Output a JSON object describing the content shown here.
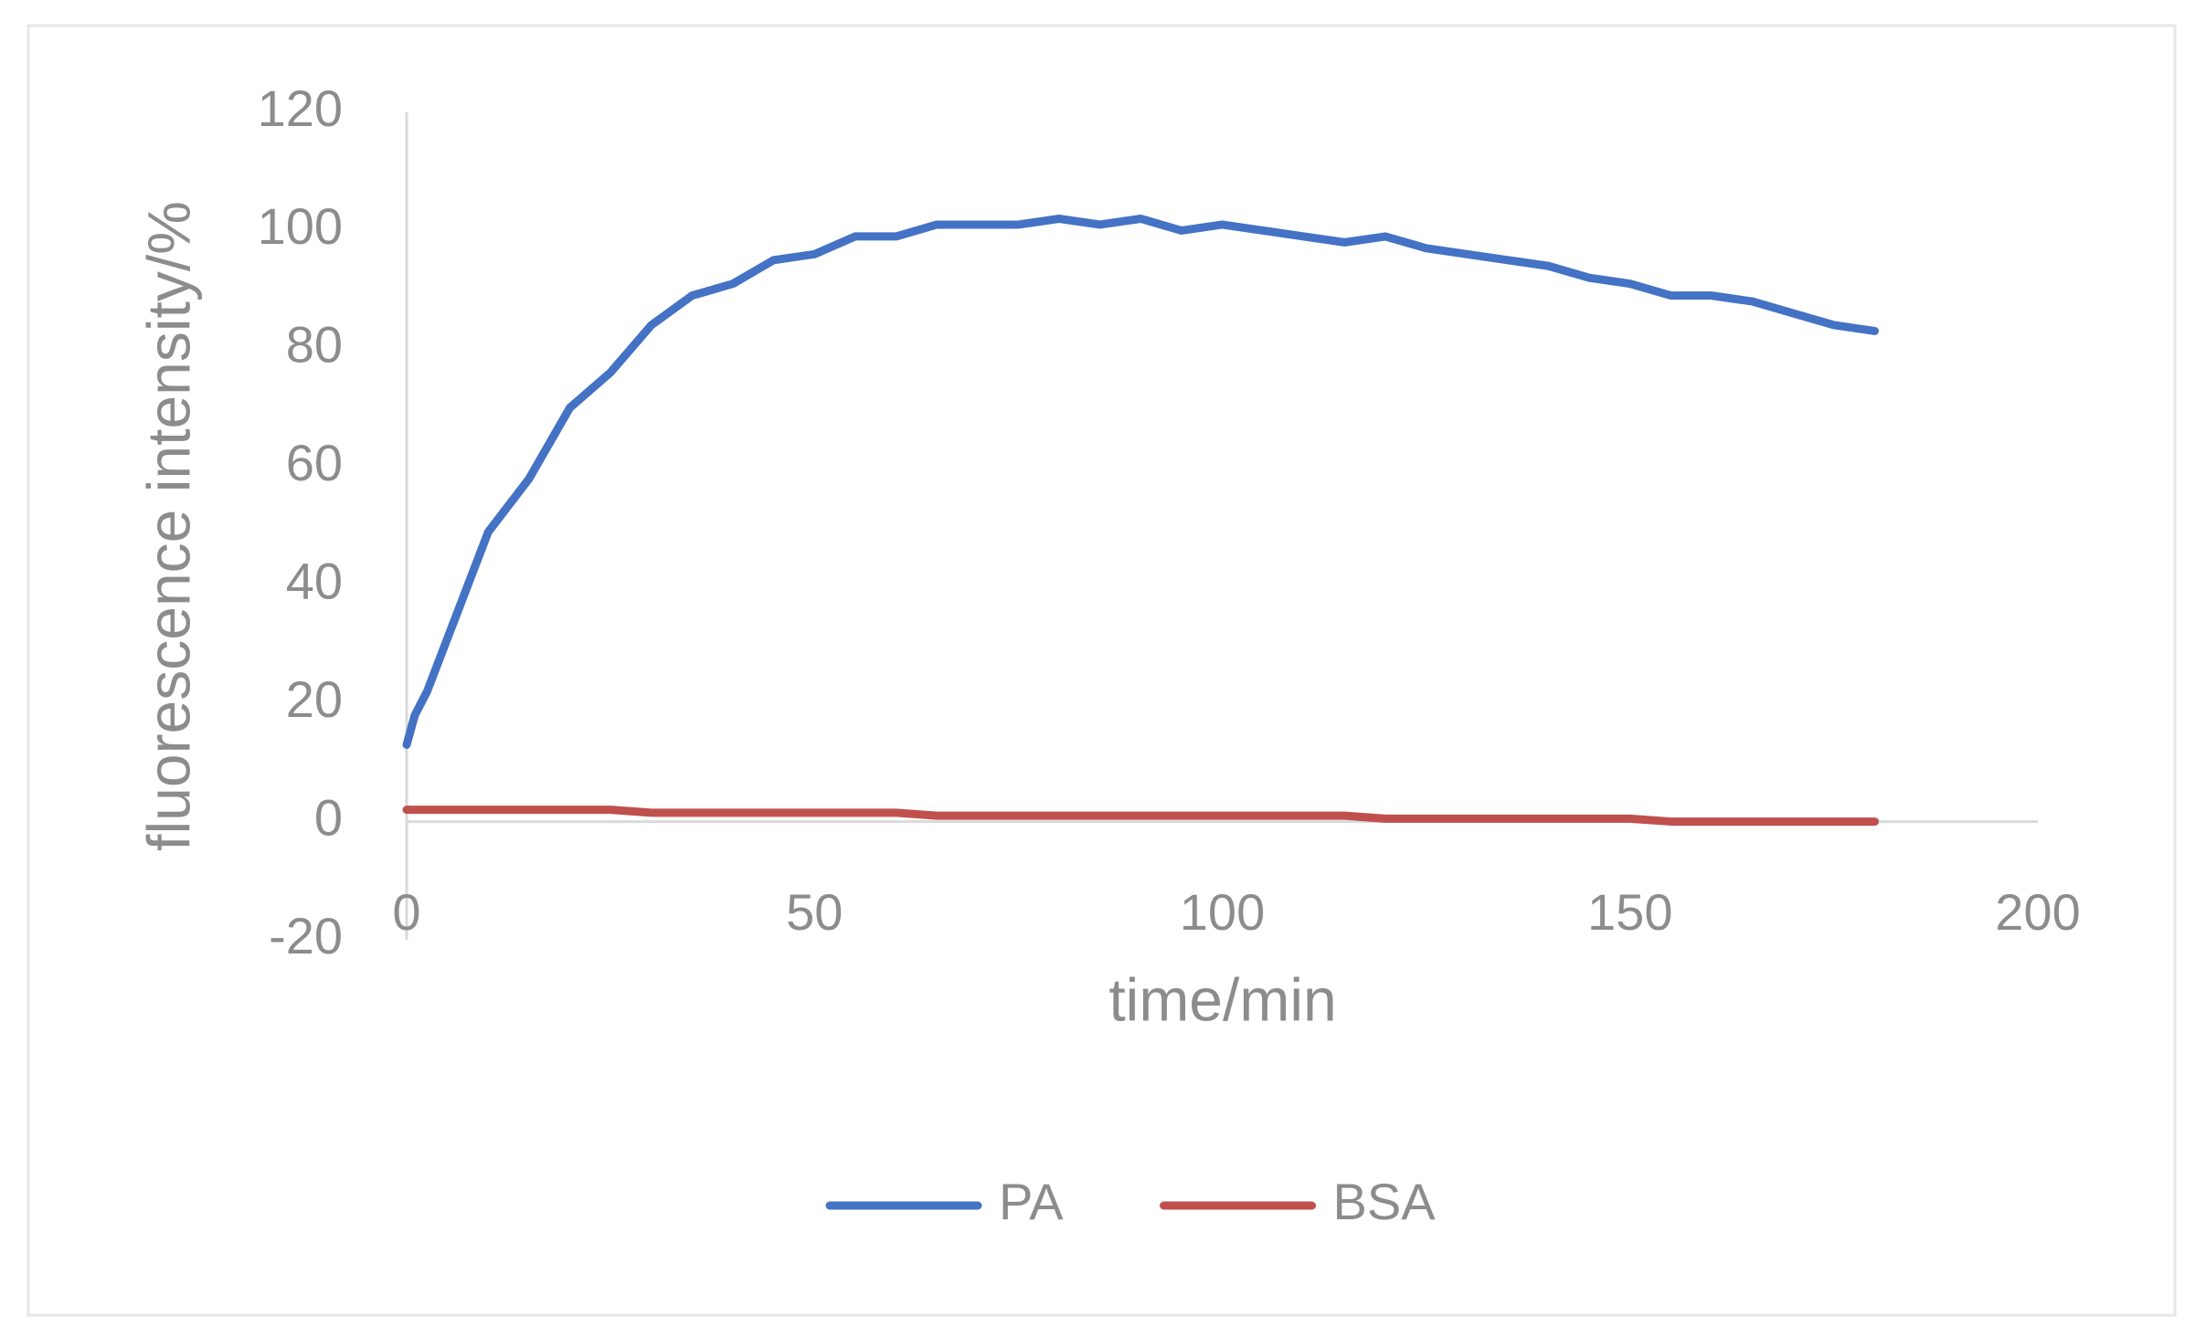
{
  "chart_data": {
    "type": "line",
    "xlabel": "time/min",
    "ylabel": "fluorescence intensity/%",
    "x": [
      0,
      1,
      2.5,
      5,
      10,
      15,
      20,
      25,
      30,
      35,
      40,
      45,
      50,
      55,
      60,
      65,
      70,
      75,
      80,
      85,
      90,
      95,
      100,
      105,
      110,
      115,
      120,
      125,
      130,
      135,
      140,
      145,
      150,
      155,
      160,
      165,
      170,
      175,
      180
    ],
    "series": [
      {
        "name": "PA",
        "color": "#4472c4",
        "values": [
          13,
          18,
          22,
          31,
          49,
          58,
          70,
          76,
          84,
          89,
          91,
          95,
          96,
          99,
          99,
          101,
          101,
          101,
          102,
          101,
          102,
          100,
          101,
          100,
          99,
          98,
          99,
          97,
          96,
          95,
          94,
          92,
          91,
          89,
          89,
          88,
          86,
          84,
          83
        ]
      },
      {
        "name": "BSA",
        "color": "#c0504d",
        "values": [
          2,
          2,
          2,
          2,
          2,
          2,
          2,
          2,
          1.5,
          1.5,
          1.5,
          1.5,
          1.5,
          1.5,
          1.5,
          1,
          1,
          1,
          1,
          1,
          1,
          1,
          1,
          1,
          1,
          1,
          0.5,
          0.5,
          0.5,
          0.5,
          0.5,
          0.5,
          0.5,
          0,
          0,
          0,
          0,
          0,
          0
        ]
      }
    ],
    "xlim": [
      0,
      200
    ],
    "xticks": [
      0,
      50,
      100,
      150,
      200
    ],
    "ylim": [
      -20,
      120
    ],
    "yticks": [
      -20,
      0,
      20,
      40,
      60,
      80,
      100,
      120
    ],
    "grid": false,
    "legend": "bottom"
  }
}
